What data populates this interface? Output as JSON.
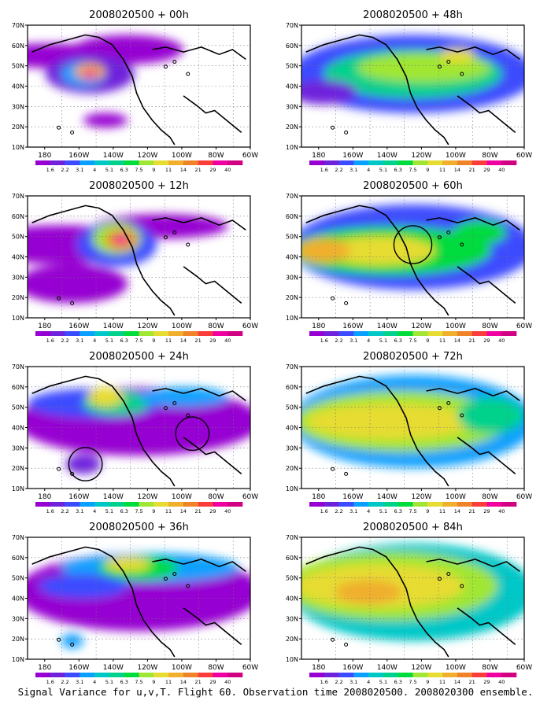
{
  "caption": "Signal Variance for u,v,T. Flight 60. Observation time 2008020500. 2008020300 ensemble.",
  "x_ticks": [
    "180",
    "160W",
    "140W",
    "120W",
    "100W",
    "80W",
    "60W"
  ],
  "y_ticks": [
    "10N",
    "20N",
    "30N",
    "40N",
    "50N",
    "60N",
    "70N"
  ],
  "colorbar": {
    "labels": [
      "1.6",
      "2.2",
      "3.1",
      "4",
      "5.1",
      "6.3",
      "7.5",
      "9",
      "11",
      "14",
      "21",
      "29",
      "40"
    ],
    "colors": [
      "#9600d2",
      "#6e22dc",
      "#3c4bff",
      "#0aa0ff",
      "#00c8c8",
      "#00d28c",
      "#00dc3c",
      "#a0e632",
      "#e6dc32",
      "#f0af2d",
      "#f08228",
      "#fa3c3c",
      "#f000a0",
      "#d20082"
    ]
  },
  "panels": [
    {
      "title": "2008020500 + 00h",
      "hour": 0
    },
    {
      "title": "2008020500 + 12h",
      "hour": 12
    },
    {
      "title": "2008020500 + 24h",
      "hour": 24
    },
    {
      "title": "2008020500 + 36h",
      "hour": 36
    },
    {
      "title": "2008020500 + 48h",
      "hour": 48
    },
    {
      "title": "2008020500 + 60h",
      "hour": 60
    },
    {
      "title": "2008020500 + 72h",
      "hour": 72
    },
    {
      "title": "2008020500 + 84h",
      "hour": 84
    }
  ],
  "map_extent": {
    "lon_range": [
      170,
      300
    ],
    "lat_range": [
      10,
      70
    ]
  }
}
